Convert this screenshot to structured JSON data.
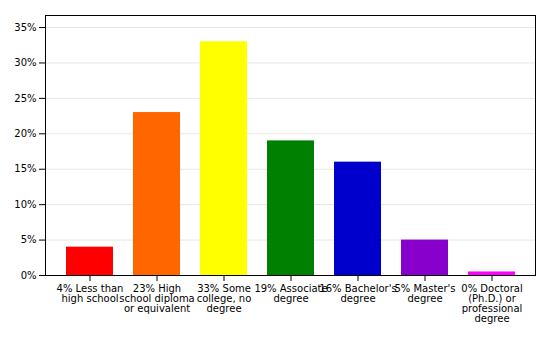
{
  "chart_data": {
    "type": "bar",
    "categories": [
      "4% Less than\nhigh school",
      "23% High\nschool diploma\nor equivalent",
      "33% Some\ncollege, no\ndegree",
      "19% Associate\ndegree",
      "16% Bachelor's\ndegree",
      "5% Master's\ndegree",
      "0% Doctoral\n(Ph.D.) or\nprofessional\ndegree"
    ],
    "values": [
      4,
      23,
      33,
      19,
      16,
      5,
      0.5
    ],
    "colors": [
      "#ff0000",
      "#ff6600",
      "#ffff00",
      "#008000",
      "#0000cc",
      "#8800cc",
      "#ff00ff"
    ],
    "ylim": [
      0,
      36.7
    ],
    "yticks": [
      {
        "value": 0,
        "label": "0%"
      },
      {
        "value": 5,
        "label": "5%"
      },
      {
        "value": 10,
        "label": "10%"
      },
      {
        "value": 15,
        "label": "15%"
      },
      {
        "value": 20,
        "label": "20%"
      },
      {
        "value": 25,
        "label": "25%"
      },
      {
        "value": 30,
        "label": "30%"
      },
      {
        "value": 35,
        "label": "35%"
      }
    ],
    "grid": true
  }
}
